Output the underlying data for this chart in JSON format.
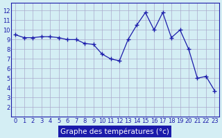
{
  "hours": [
    0,
    1,
    2,
    3,
    4,
    5,
    6,
    7,
    8,
    9,
    10,
    11,
    12,
    13,
    14,
    15,
    16,
    17,
    18,
    19,
    20,
    21,
    22,
    23
  ],
  "temps": [
    9.5,
    9.2,
    9.2,
    9.3,
    9.3,
    9.2,
    9.0,
    9.0,
    8.6,
    8.5,
    7.5,
    7.0,
    6.8,
    9.0,
    10.5,
    11.8,
    10.0,
    11.8,
    9.2,
    10.0,
    8.0,
    5.0,
    5.2,
    3.7
  ],
  "line_color": "#1a1aaa",
  "marker": "+",
  "bg_color": "#d4eef4",
  "grid_color": "#aaaacc",
  "xlabel": "Graphe des températures (°c)",
  "xlabel_color": "#ffffff",
  "xlabel_bg": "#1a1aaa",
  "ylim_low": 1.0,
  "ylim_high": 12.8,
  "yticks": [
    2,
    3,
    4,
    5,
    6,
    7,
    8,
    9,
    10,
    11,
    12
  ],
  "tick_color": "#1a1aaa",
  "tick_fontsize": 6.0,
  "label_fontsize": 7.5
}
